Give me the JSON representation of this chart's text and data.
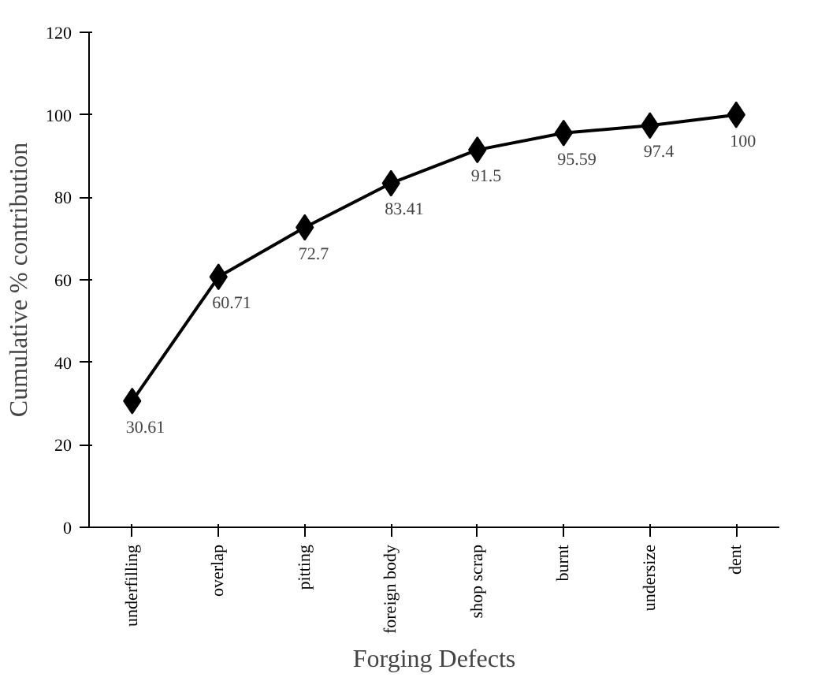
{
  "chart_data": {
    "type": "line",
    "xlabel": "Forging Defects",
    "ylabel": "Cumulative % contribution",
    "categories": [
      "underfilling",
      "overlap",
      "pitting",
      "foreign body",
      "shop scrap",
      "burnt",
      "undersize",
      "dent"
    ],
    "series": [
      {
        "color": "#000000",
        "values": [
          30.61,
          60.71,
          72.7,
          83.41,
          91.5,
          95.59,
          97.4,
          100
        ]
      }
    ],
    "ylim": [
      0,
      120
    ],
    "yticks": [
      0,
      20,
      40,
      60,
      80,
      100,
      120
    ],
    "grid": false,
    "marker": "diamond",
    "line_style": "solid",
    "data_labels": true
  }
}
